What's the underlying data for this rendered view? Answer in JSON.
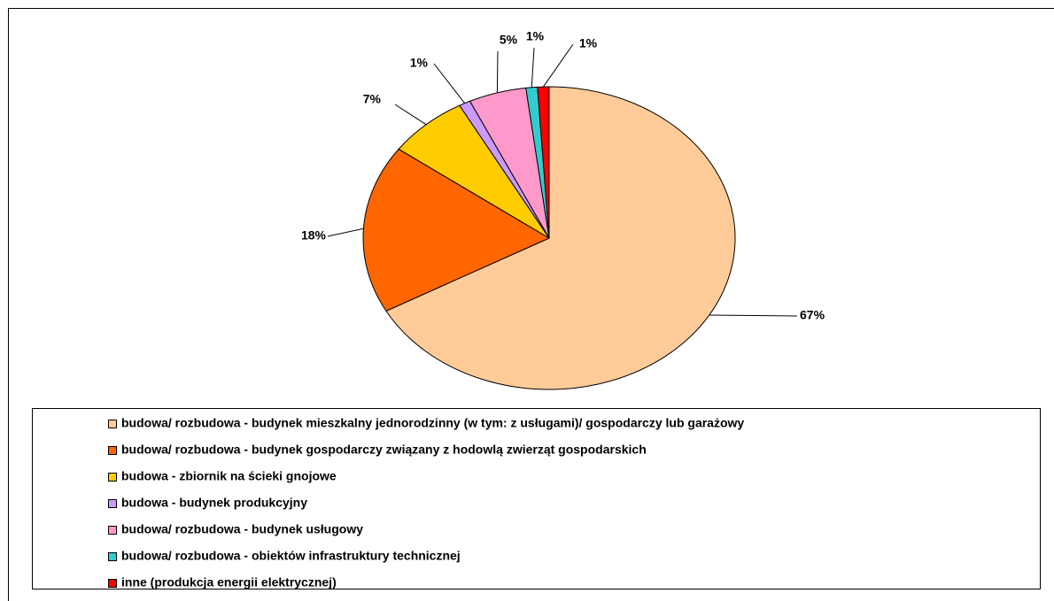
{
  "chart_data": {
    "type": "pie",
    "categories": [
      "budowa/ rozbudowa - budynek mieszkalny jednorodzinny (w tym: z usługami)/ gospodarczy lub garażowy",
      "budowa/ rozbudowa - budynek gospodarczy związany z hodowlą zwierząt gospodarskich",
      "budowa - zbiornik na ścieki gnojowe",
      "budowa - budynek produkcyjny",
      "budowa/ rozbudowa - budynek usługowy",
      "budowa/ rozbudowa - obiektów infrastruktury technicznej",
      "inne (produkcja energii elektrycznej)"
    ],
    "values": [
      67,
      18,
      7,
      1,
      5,
      1,
      1
    ],
    "value_labels": [
      "67%",
      "18%",
      "7%",
      "1%",
      "5%",
      "1%",
      "1%"
    ],
    "colors": [
      "#FFCC99",
      "#FF6600",
      "#FFCC00",
      "#CC99FF",
      "#FF99CC",
      "#33CCCC",
      "#FF0000"
    ],
    "legend": "bottom"
  }
}
